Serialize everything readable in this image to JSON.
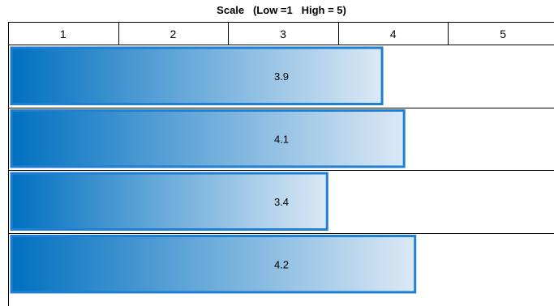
{
  "chart_data": {
    "type": "bar",
    "orientation": "horizontal",
    "title": "Scale   (Low =1   High = 5)",
    "x_ticks": [
      "1",
      "2",
      "3",
      "4",
      "5"
    ],
    "xlim": [
      0.5,
      5.5
    ],
    "categories": [
      "",
      "",
      "",
      ""
    ],
    "values": [
      3.9,
      4.1,
      3.4,
      4.2
    ],
    "value_labels": [
      "3.9",
      "4.1",
      "3.4",
      "4.2"
    ],
    "bar_gradient": [
      "#0070c0",
      "#dce9f5"
    ],
    "bar_border_color": "#1f7fd4",
    "grid": true
  }
}
